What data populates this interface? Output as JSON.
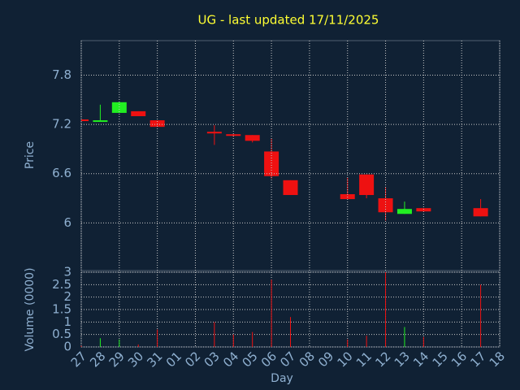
{
  "chart_data": {
    "type": "candlestick",
    "title": "UG - last updated 17/11/2025",
    "ylabel": "Price",
    "volume_label": "Volume (0000)",
    "xlabel": "Day",
    "categories": [
      "27",
      "28",
      "29",
      "30",
      "31",
      "01",
      "02",
      "03",
      "04",
      "05",
      "06",
      "07",
      "08",
      "09",
      "10",
      "11",
      "12",
      "13",
      "14",
      "15",
      "16",
      "17",
      "18"
    ],
    "open": [
      7.26,
      7.24,
      7.34,
      7.36,
      7.25,
      null,
      null,
      7.11,
      7.08,
      7.07,
      6.87,
      6.52,
      null,
      null,
      6.35,
      6.59,
      6.3,
      6.11,
      6.18,
      null,
      null,
      6.18,
      null
    ],
    "close": [
      7.25,
      7.25,
      7.47,
      7.3,
      7.17,
      null,
      null,
      7.09,
      7.06,
      7.0,
      6.57,
      6.34,
      null,
      null,
      6.29,
      6.34,
      6.13,
      6.17,
      6.14,
      null,
      null,
      6.08,
      null
    ],
    "high": [
      7.26,
      7.44,
      7.47,
      7.36,
      7.25,
      null,
      null,
      7.19,
      7.08,
      7.07,
      7.03,
      6.52,
      null,
      null,
      6.55,
      6.59,
      6.44,
      6.26,
      6.18,
      null,
      null,
      6.29,
      null
    ],
    "low": [
      7.25,
      7.24,
      7.34,
      7.3,
      7.17,
      null,
      null,
      6.95,
      7.05,
      6.98,
      6.54,
      6.34,
      null,
      null,
      6.29,
      6.3,
      6.03,
      6.11,
      6.14,
      null,
      null,
      6.08,
      null
    ],
    "volume": [
      0.05,
      0.35,
      0.3,
      0.1,
      0.7,
      null,
      null,
      1.0,
      0.5,
      0.6,
      2.7,
      1.2,
      null,
      null,
      0.3,
      0.45,
      3.0,
      0.8,
      0.4,
      null,
      null,
      2.5,
      null
    ],
    "up_color": "#22ee22",
    "down_color": "#ee1111",
    "ylim": [
      5.42,
      8.22
    ],
    "yticks": [
      7.8,
      7.2,
      6.6,
      6
    ],
    "volume_ylim": [
      0,
      3
    ],
    "volume_yticks": [
      0,
      0.5,
      1,
      1.5,
      2,
      2.5,
      3
    ],
    "grid": true
  }
}
